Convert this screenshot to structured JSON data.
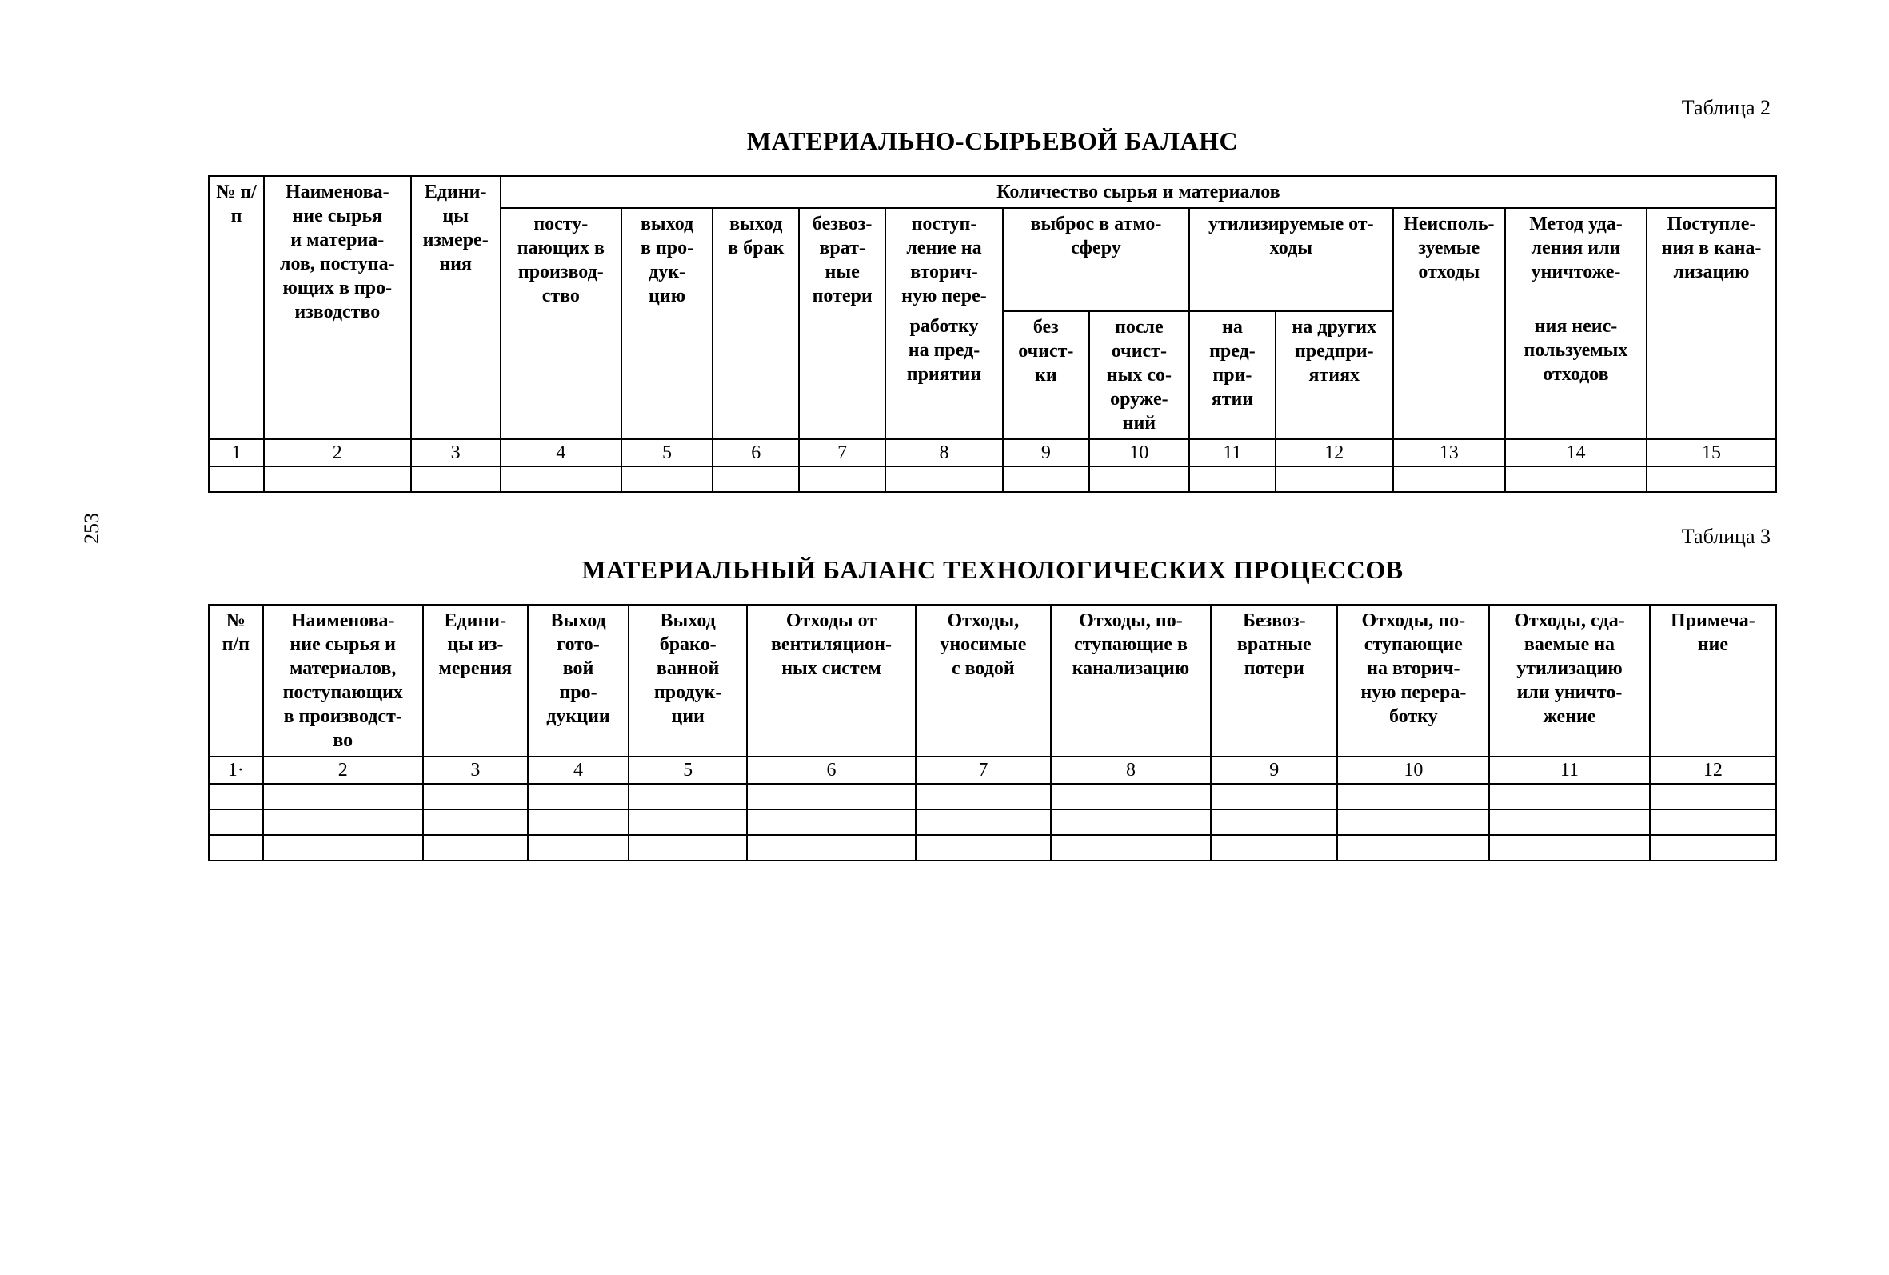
{
  "pageNumber": "253",
  "table2": {
    "label": "Таблица 2",
    "title": "МАТЕРИАЛЬНО-СЫРЬЕВОЙ БАЛАНС",
    "header": {
      "col1": "№ п/п",
      "col2": "Наименова-\nние сырья\nи материа-\nлов, поступа-\nющих в про-\nизводство",
      "col3": "Едини-\nцы\nизмере-\nния",
      "group": "Количество сырья и материалов",
      "col4": "посту-\nпающих в\nпроизвод-\nство",
      "col5": "выход\nв про-\nдук-\nцию",
      "col6": "выход\nв брак",
      "col7": "безвоз-\nврат-\nные\nпотери",
      "col8_top": "поступ-\nление на\nвторич-\nную пере-",
      "col8_bot": "работку\nна пред-\nприятии",
      "group9_10": "выброс в атмо-\nсферу",
      "col9": "без\nочист-\nки",
      "col10": "после\nочист-\nных со-\nоруже-\nний",
      "group11_12": "утилизируемые от-\nходы",
      "col11": "на\nпред-\nпри-\nятии",
      "col12": "на других\nпредпри-\nятиях",
      "col13": "Неисполь-\nзуемые\nотходы",
      "col14_top": "Метод уда-\nления или\nуничтоже-",
      "col14_bot": "ния неис-\nпользуемых\nотходов",
      "col15": "Поступле-\nния в кана-\nлизацию"
    },
    "numbers": [
      "1",
      "2",
      "3",
      "4",
      "5",
      "6",
      "7",
      "8",
      "9",
      "10",
      "11",
      "12",
      "13",
      "14",
      "15"
    ],
    "emptyRows": 1
  },
  "table3": {
    "label": "Таблица 3",
    "title": "МАТЕРИАЛЬНЫЙ БАЛАНС ТЕХНОЛОГИЧЕСКИХ ПРОЦЕССОВ",
    "header": {
      "col1": "№\nп/п",
      "col2": "Наименова-\nние сырья и\nматериалов,\nпоступающих\nв производст-\nво",
      "col3": "Едини-\nцы из-\nмерения",
      "col4": "Выход\nгото-\nвой\nпро-\nдукции",
      "col5": "Выход\nбрако-\nванной\nпродук-\nции",
      "col6": "Отходы от\nвентиляцион-\nных систем",
      "col7": "Отходы,\nуносимые\nс водой",
      "col8": "Отходы, по-\nступающие в\nканализацию",
      "col9": "Безвоз-\nвратные\nпотери",
      "col10": "Отходы, по-\nступающие\nна вторич-\nную перера-\nботку",
      "col11": "Отходы, сда-\nваемые на\nутилизацию\nили уничто-\nжение",
      "col12": "Примеча-\nние"
    },
    "numbers": [
      "1·",
      "2",
      "3",
      "4",
      "5",
      "6",
      "7",
      "8",
      "9",
      "10",
      "11",
      "12"
    ],
    "emptyRows": 3
  },
  "style": {
    "background": "#ffffff",
    "text_color": "#000000",
    "border_color": "#000000",
    "font_family": "Times New Roman",
    "title_fontsize_pt": 24,
    "body_fontsize_pt": 18
  }
}
